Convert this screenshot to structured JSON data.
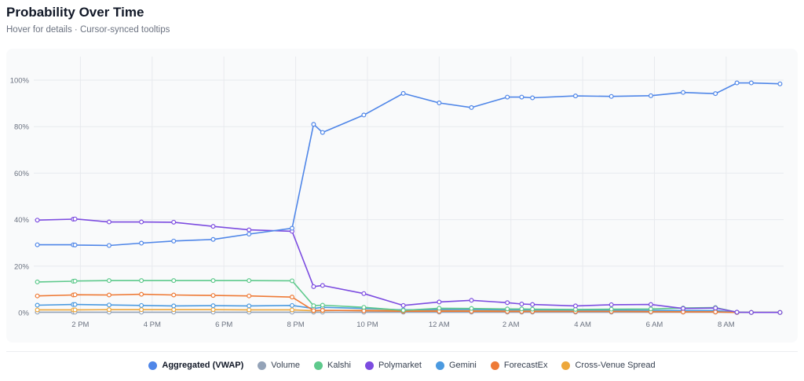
{
  "header": {
    "title": "Probability Over Time",
    "subtitle": "Hover for details · Cursor-synced tooltips"
  },
  "legend": [
    {
      "label": "Aggregated (VWAP)",
      "color": "#4f86e8",
      "active": true
    },
    {
      "label": "Volume",
      "color": "#94a3b8",
      "active": false
    },
    {
      "label": "Kalshi",
      "color": "#5ec98c",
      "active": false
    },
    {
      "label": "Polymarket",
      "color": "#7c4ce0",
      "active": false
    },
    {
      "label": "Gemini",
      "color": "#4b9ae0",
      "active": false
    },
    {
      "label": "ForecastEx",
      "color": "#ee7a36",
      "active": false
    },
    {
      "label": "Cross-Venue Spread",
      "color": "#eda73b",
      "active": false
    }
  ],
  "chart_data": {
    "type": "line",
    "x_unit": "hour of day (12:00 PM day 1 = 12; 8 AM next day = 32)",
    "xlim": [
      12.7,
      33.6
    ],
    "ylim": [
      0,
      100
    ],
    "x_ticks": [
      {
        "x": 14,
        "label": "2 PM"
      },
      {
        "x": 16,
        "label": "4 PM"
      },
      {
        "x": 18,
        "label": "6 PM"
      },
      {
        "x": 20,
        "label": "8 PM"
      },
      {
        "x": 22,
        "label": "10 PM"
      },
      {
        "x": 24,
        "label": "12 AM"
      },
      {
        "x": 26,
        "label": "2 AM"
      },
      {
        "x": 28,
        "label": "4 AM"
      },
      {
        "x": 30,
        "label": "6 AM"
      },
      {
        "x": 32,
        "label": "8 AM"
      }
    ],
    "y_ticks": [
      {
        "y": 0,
        "label": "0%"
      },
      {
        "y": 20,
        "label": "20%"
      },
      {
        "y": 40,
        "label": "40%"
      },
      {
        "y": 60,
        "label": "60%"
      },
      {
        "y": 80,
        "label": "80%"
      },
      {
        "y": 100,
        "label": "100%"
      }
    ],
    "grid": true,
    "series": [
      {
        "name": "Aggregated (VWAP)",
        "color": "#4f86e8",
        "x": [
          12.8,
          13.8,
          13.85,
          14.8,
          15.7,
          16.6,
          17.7,
          18.7,
          19.9,
          20.5,
          20.75,
          21.9,
          23.0,
          24.0,
          24.9,
          25.9,
          26.3,
          26.6,
          27.8,
          28.8,
          29.9,
          30.8,
          31.7,
          32.3,
          32.7,
          33.5
        ],
        "y": [
          29.2,
          29.2,
          29.1,
          28.9,
          29.9,
          30.8,
          31.5,
          33.8,
          36.3,
          81.0,
          77.5,
          85.0,
          94.3,
          90.2,
          88.2,
          92.7,
          92.7,
          92.4,
          93.2,
          93.0,
          93.3,
          94.7,
          94.2,
          98.8,
          98.8,
          98.4
        ]
      },
      {
        "name": "Polymarket",
        "color": "#7c4ce0",
        "x": [
          12.8,
          13.8,
          13.85,
          14.8,
          15.7,
          16.6,
          17.7,
          18.7,
          19.9,
          20.5,
          20.75,
          21.9,
          23.0,
          24.0,
          24.9,
          25.9,
          26.3,
          26.6,
          27.8,
          28.8,
          29.9,
          30.8,
          31.7,
          32.3,
          32.7,
          33.5
        ],
        "y": [
          39.8,
          40.2,
          40.3,
          39.0,
          39.0,
          38.9,
          37.1,
          35.6,
          35.0,
          11.2,
          11.7,
          8.2,
          3.1,
          4.6,
          5.3,
          4.3,
          3.7,
          3.5,
          2.9,
          3.4,
          3.5,
          1.8,
          2.0,
          0.2,
          0.1,
          0.1
        ]
      },
      {
        "name": "Kalshi",
        "color": "#5ec98c",
        "x": [
          12.8,
          13.8,
          13.85,
          14.8,
          15.7,
          16.6,
          17.7,
          18.7,
          19.9,
          20.5,
          20.75,
          21.9,
          23.0,
          24.0,
          24.9,
          25.9,
          26.3,
          26.6,
          27.8,
          28.8,
          29.9,
          30.8,
          31.7,
          32.3,
          32.7,
          33.5
        ],
        "y": [
          13.2,
          13.5,
          13.6,
          13.8,
          13.8,
          13.8,
          13.8,
          13.8,
          13.7,
          3.0,
          3.2,
          2.3,
          1.0,
          1.9,
          1.8,
          1.6,
          1.6,
          1.5,
          1.4,
          1.5,
          1.6,
          2.0,
          2.2,
          0.2,
          0.1,
          0.1
        ]
      },
      {
        "name": "ForecastEx",
        "color": "#ee7a36",
        "x": [
          12.8,
          13.8,
          13.85,
          14.8,
          15.7,
          16.6,
          17.7,
          18.7,
          19.9,
          20.5,
          20.75,
          21.9,
          23.0,
          24.0,
          24.9,
          25.9,
          26.3,
          26.6,
          27.8,
          28.8,
          29.9,
          30.8,
          31.7,
          32.3,
          32.7,
          33.5
        ],
        "y": [
          7.2,
          7.6,
          7.7,
          7.6,
          7.9,
          7.6,
          7.4,
          7.2,
          6.7,
          0.9,
          1.0,
          0.8,
          0.6,
          0.6,
          0.6,
          0.5,
          0.5,
          0.5,
          0.5,
          0.5,
          0.4,
          0.3,
          0.3,
          0.1,
          0.1,
          0.1
        ]
      },
      {
        "name": "Gemini",
        "color": "#4b9ae0",
        "x": [
          12.8,
          13.8,
          13.85,
          14.8,
          15.7,
          16.6,
          17.7,
          18.7,
          19.9,
          20.5,
          20.75,
          21.9,
          23.0,
          24.0,
          24.9,
          25.9,
          26.3,
          26.6,
          27.8,
          28.8,
          29.9,
          30.8,
          31.7,
          32.3,
          32.7,
          33.5
        ],
        "y": [
          3.2,
          3.5,
          3.5,
          3.3,
          3.1,
          2.9,
          3.0,
          2.9,
          3.1,
          1.8,
          2.3,
          1.8,
          1.2,
          1.4,
          1.4,
          1.2,
          1.2,
          1.2,
          1.1,
          1.1,
          1.0,
          0.9,
          0.9,
          0.1,
          0.1,
          0.1
        ]
      },
      {
        "name": "Cross-Venue Spread",
        "color": "#eda73b",
        "x": [
          12.8,
          13.8,
          13.85,
          14.8,
          15.7,
          16.6,
          17.7,
          18.7,
          19.9,
          20.5,
          20.75,
          21.9,
          23.0,
          24.0,
          24.9,
          25.9,
          26.3,
          26.6,
          27.8,
          28.8,
          29.9,
          30.8,
          31.7,
          32.3,
          32.7,
          33.5
        ],
        "y": [
          1.2,
          1.2,
          1.2,
          1.3,
          1.3,
          1.3,
          1.3,
          1.2,
          1.2,
          0.8,
          0.9,
          1.0,
          0.9,
          0.9,
          0.8,
          0.8,
          0.8,
          0.8,
          0.7,
          0.8,
          0.8,
          0.7,
          0.6,
          0.1,
          0.1,
          0.1
        ]
      },
      {
        "name": "Volume",
        "color": "#94a3b8",
        "x": [
          12.8,
          13.8,
          13.85,
          14.8,
          15.7,
          16.6,
          17.7,
          18.7,
          19.9,
          20.5,
          20.75,
          21.9,
          23.0,
          24.0,
          24.9,
          25.9,
          26.3,
          26.6,
          27.8,
          28.8,
          29.9,
          30.8,
          31.7,
          32.3,
          32.7,
          33.5
        ],
        "y": [
          0.2,
          0.2,
          0.2,
          0.2,
          0.2,
          0.2,
          0.2,
          0.2,
          0.2,
          0.2,
          0.2,
          0.2,
          0.2,
          0.2,
          0.2,
          0.2,
          0.2,
          0.2,
          0.2,
          0.2,
          0.2,
          0.2,
          0.2,
          0.1,
          0.1,
          0.1
        ]
      }
    ]
  }
}
